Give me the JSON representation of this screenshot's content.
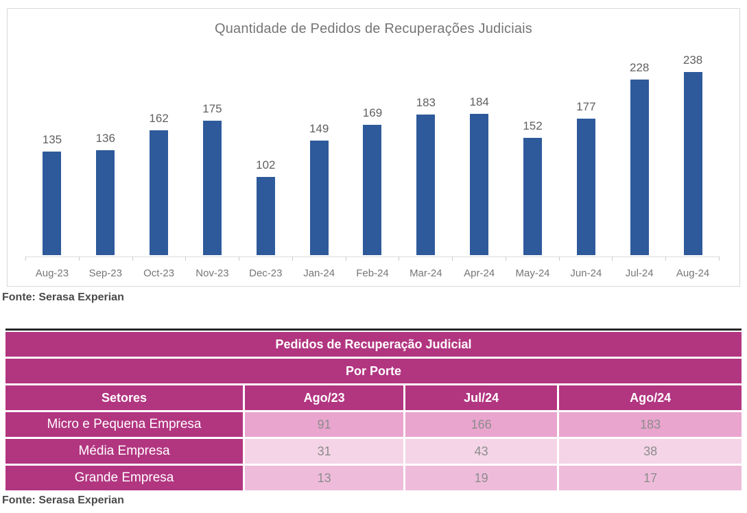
{
  "chart_data": [
    {
      "type": "bar",
      "title": "Quantidade de Pedidos de Recuperações Judiciais",
      "categories": [
        "Aug-23",
        "Sep-23",
        "Oct-23",
        "Nov-23",
        "Dec-23",
        "Jan-24",
        "Feb-24",
        "Mar-24",
        "Apr-24",
        "May-24",
        "Jun-24",
        "Jul-24",
        "Aug-24"
      ],
      "values": [
        135,
        136,
        162,
        175,
        102,
        149,
        169,
        183,
        184,
        152,
        177,
        228,
        238
      ],
      "xlabel": "",
      "ylabel": "",
      "ylim": [
        0,
        250
      ],
      "grid": false,
      "legend_position": "none",
      "data_labels": true,
      "bar_color": "#2e5a9b",
      "source": "Fonte: Serasa Experian"
    },
    {
      "type": "table",
      "title": "Pedidos de Recuperação Judicial",
      "subtitle": "Por Porte",
      "columns": [
        "Setores",
        "Ago/23",
        "Jul/24",
        "Ago/24"
      ],
      "rows": [
        {
          "label": "Micro e Pequena Empresa",
          "values": [
            91,
            166,
            183
          ]
        },
        {
          "label": "Média Empresa",
          "values": [
            31,
            43,
            38
          ]
        },
        {
          "label": "Grande Empresa",
          "values": [
            13,
            19,
            17
          ]
        }
      ],
      "source": "Fonte: Serasa Experian"
    }
  ],
  "colors": {
    "bar_blue": "#2e5a9b",
    "magenta_header": "#b23580",
    "row_shades": [
      "#e9a5ce",
      "#f4d4e6",
      "#eebcda"
    ],
    "data_text": "#8c8c8c",
    "chart_text": "#757575",
    "source_text": "#4a4a4a",
    "axis_line": "#dcdcdc",
    "table_top_border": "#262626"
  }
}
